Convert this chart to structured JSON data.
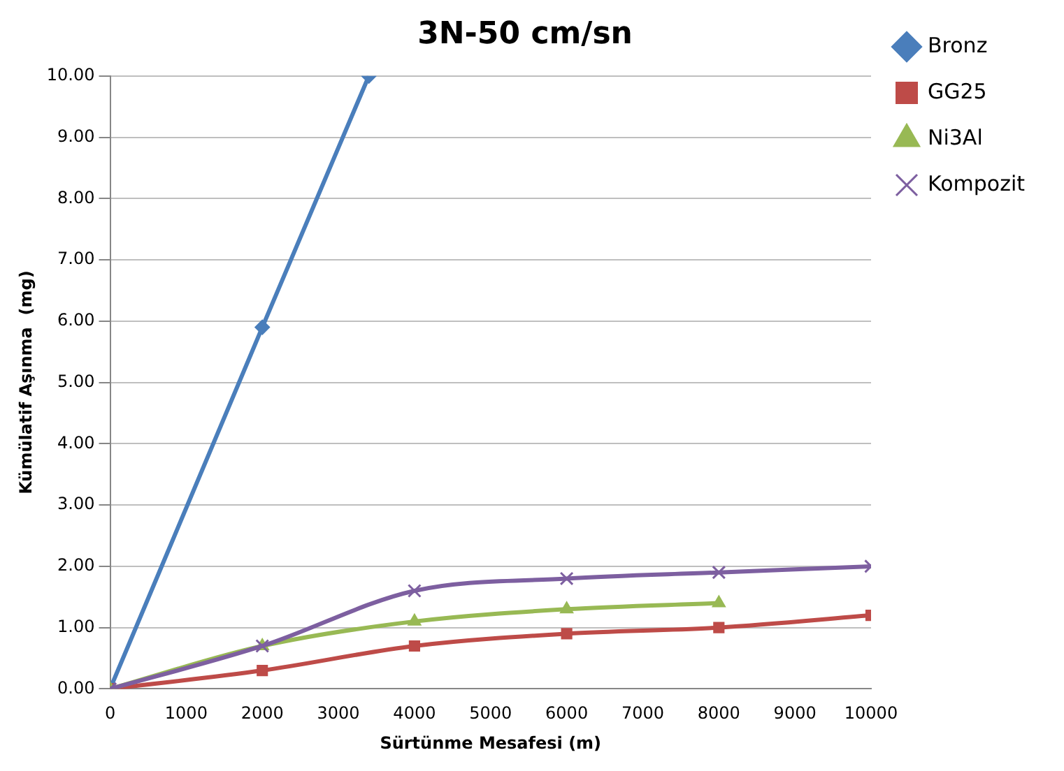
{
  "chart_data": {
    "type": "line",
    "title": "3N-50 cm/sn",
    "xlabel": "Sürtünme Mesafesi (m)",
    "ylabel": "Kümülatif Aşınma  (mg)",
    "x": [
      0,
      2000,
      4000,
      6000,
      8000,
      10000
    ],
    "series": [
      {
        "name": "Bronz",
        "color": "#4a7ebb",
        "marker": "diamond",
        "x": [
          0,
          2000,
          3400
        ],
        "values": [
          0,
          5.9,
          10
        ]
      },
      {
        "name": "GG25",
        "color": "#be4b48",
        "marker": "square",
        "values": [
          0,
          0.3,
          0.7,
          0.9,
          1.0,
          1.2
        ]
      },
      {
        "name": "Ni3Al",
        "color": "#98b954",
        "marker": "triangle",
        "values": [
          0,
          0.7,
          1.1,
          1.3,
          1.4,
          null
        ]
      },
      {
        "name": "Kompozit",
        "color": "#7d5fa0",
        "marker": "cross",
        "values": [
          0,
          0.7,
          1.6,
          1.8,
          1.9,
          2.0
        ]
      }
    ],
    "xlim": [
      0,
      10000
    ],
    "xticks": [
      0,
      1000,
      2000,
      3000,
      4000,
      5000,
      6000,
      7000,
      8000,
      9000,
      10000
    ],
    "ylim": [
      0,
      10
    ],
    "yticks": [
      {
        "value": 0,
        "label": "0.00"
      },
      {
        "value": 1,
        "label": "1.00"
      },
      {
        "value": 2,
        "label": "2.00"
      },
      {
        "value": 3,
        "label": "3.00"
      },
      {
        "value": 4,
        "label": "4.00"
      },
      {
        "value": 5,
        "label": "5.00"
      },
      {
        "value": 6,
        "label": "6.00"
      },
      {
        "value": 7,
        "label": "7.00"
      },
      {
        "value": 8,
        "label": "8.00"
      },
      {
        "value": 9,
        "label": "9.00"
      },
      {
        "value": 10,
        "label": "10.00"
      }
    ],
    "grid": "y",
    "legend": "top right",
    "line_style": "solid"
  }
}
